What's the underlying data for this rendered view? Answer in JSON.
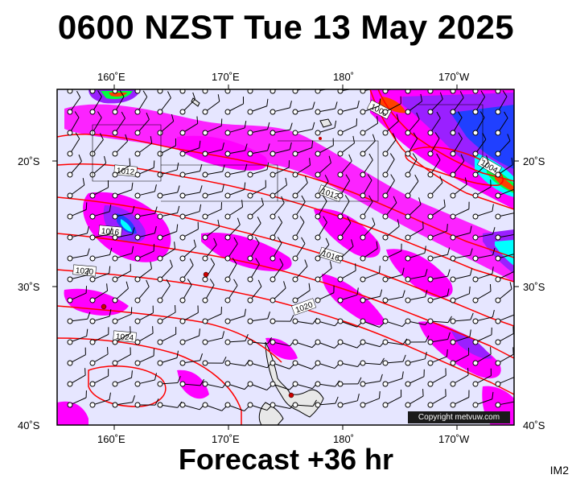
{
  "title": "0600 NZST Tue 13 May 2025",
  "subtitle": "Forecast +36 hr",
  "model_code": "IM2",
  "copyright": "Copyright metvuw.com",
  "top_lon_labels": [
    "160˚E",
    "170˚E",
    "180˚",
    "170˚W"
  ],
  "bottom_lon_labels": [
    "160˚E",
    "170˚E",
    "180˚",
    "170˚W"
  ],
  "left_lat_labels": [
    "20˚S",
    "30˚S",
    "40˚S"
  ],
  "right_lat_labels": [
    "20˚S",
    "30˚S",
    "40˚S"
  ],
  "isobar_labels": [
    "1008",
    "1004",
    "1012",
    "1012",
    "1016",
    "1016",
    "1020",
    "1020",
    "1024"
  ],
  "colors": {
    "ocean": "#e6e6ff",
    "isobar": "#ff0000",
    "rain_light": "#ff00ff",
    "rain_moderate": "#9a20ff",
    "rain_heavy": "#2040ff",
    "rain_very_heavy": "#00ffff",
    "rain_intense": "#00ff40",
    "rain_extreme": "#ffff00",
    "land": "#e8e8e8"
  },
  "map_extent": {
    "lon_west": 155,
    "lon_east": 195,
    "lat_north": -15,
    "lat_south": -40
  }
}
